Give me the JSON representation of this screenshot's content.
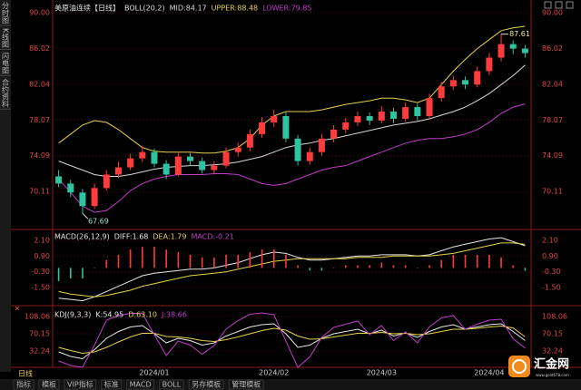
{
  "chart_data": [
    {
      "type": "candlestick",
      "title": "美原油连续【日线】",
      "indicator": "BOLL(20,2)",
      "categories": [
        null,
        null,
        null,
        null,
        null,
        null,
        null,
        null,
        "2024/01",
        null,
        null,
        null,
        null,
        null,
        null,
        null,
        null,
        null,
        "2024/02",
        null,
        null,
        null,
        null,
        null,
        null,
        null,
        null,
        "2024/03",
        null,
        null,
        null,
        null,
        null,
        null,
        null,
        null,
        "2024/04",
        null,
        null,
        null
      ],
      "open": [
        71.8,
        71.0,
        70.0,
        68.5,
        70.5,
        72.0,
        72.8,
        73.8,
        74.5,
        73.2,
        72.0,
        74.0,
        73.5,
        72.5,
        73.0,
        74.5,
        75.0,
        76.5,
        77.8,
        78.5,
        76.0,
        73.5,
        74.5,
        76.0,
        77.0,
        77.8,
        78.5,
        78.0,
        79.0,
        78.2,
        79.5,
        78.5,
        80.5,
        81.8,
        82.5,
        82.0,
        83.5,
        85.0,
        86.5,
        86.0
      ],
      "high": [
        72.5,
        71.4,
        70.4,
        71.0,
        72.5,
        73.4,
        74.3,
        75.2,
        74.9,
        73.6,
        74.5,
        74.4,
        73.9,
        73.5,
        75.0,
        75.6,
        77.0,
        78.4,
        79.2,
        78.9,
        76.4,
        75.0,
        76.5,
        77.5,
        78.3,
        79.0,
        78.9,
        79.6,
        79.4,
        80.0,
        79.9,
        81.0,
        82.3,
        83.0,
        82.9,
        84.0,
        85.5,
        87.61,
        86.9,
        86.4
      ],
      "low": [
        70.6,
        69.5,
        67.69,
        68.2,
        70.2,
        71.6,
        72.5,
        73.4,
        72.8,
        71.5,
        71.8,
        73.0,
        72.1,
        72.0,
        72.7,
        74.0,
        74.6,
        76.1,
        77.3,
        75.6,
        73.0,
        73.1,
        74.1,
        75.6,
        76.6,
        77.4,
        77.5,
        77.7,
        77.7,
        77.9,
        78.0,
        78.2,
        80.1,
        81.4,
        81.5,
        81.7,
        83.1,
        84.6,
        85.4,
        85.0
      ],
      "close": [
        71.0,
        70.0,
        68.5,
        70.5,
        72.0,
        72.8,
        73.8,
        74.5,
        73.2,
        72.0,
        74.0,
        73.5,
        72.5,
        73.0,
        74.5,
        75.0,
        76.5,
        77.8,
        78.5,
        76.0,
        73.5,
        74.5,
        76.0,
        77.0,
        77.8,
        78.5,
        78.0,
        79.0,
        78.2,
        79.5,
        78.5,
        80.5,
        81.8,
        82.5,
        82.0,
        83.5,
        85.0,
        86.5,
        86.0,
        85.5
      ],
      "up_color": "#ff3b3b",
      "down_color": "#2ec4a0",
      "series": [
        {
          "name": "MID:84.17",
          "color": "#d8d8d8",
          "values": [
            73.5,
            73.0,
            72.5,
            72.0,
            71.8,
            71.8,
            72.0,
            72.3,
            72.6,
            72.8,
            72.9,
            73.0,
            73.0,
            73.1,
            73.2,
            73.4,
            73.7,
            74.0,
            74.5,
            75.0,
            75.3,
            75.5,
            75.8,
            76.0,
            76.3,
            76.6,
            76.9,
            77.2,
            77.5,
            77.7,
            77.9,
            78.2,
            78.6,
            79.0,
            79.5,
            80.2,
            81.0,
            82.0,
            83.0,
            84.17
          ]
        },
        {
          "name": "UPPER:88.48",
          "color": "#e6d24a",
          "values": [
            75.5,
            76.5,
            77.5,
            78.0,
            77.8,
            77.0,
            76.0,
            75.0,
            74.6,
            74.5,
            74.5,
            74.5,
            74.4,
            74.4,
            74.6,
            75.0,
            76.0,
            77.5,
            78.5,
            79.0,
            79.0,
            79.0,
            79.2,
            79.5,
            79.8,
            80.0,
            80.2,
            80.5,
            80.5,
            80.3,
            80.0,
            80.5,
            82.0,
            83.5,
            84.8,
            86.0,
            87.0,
            88.0,
            88.3,
            88.48
          ]
        },
        {
          "name": "LOWER:79.85",
          "color": "#c03cc8",
          "values": [
            71.5,
            70.0,
            68.5,
            67.8,
            68.0,
            69.0,
            70.2,
            71.0,
            71.5,
            71.8,
            72.0,
            72.0,
            72.0,
            72.1,
            72.1,
            72.0,
            71.5,
            71.0,
            70.8,
            71.0,
            71.5,
            72.0,
            72.5,
            72.8,
            73.0,
            73.5,
            74.0,
            74.5,
            75.0,
            75.5,
            75.8,
            76.0,
            76.0,
            76.2,
            76.5,
            77.0,
            77.8,
            78.8,
            79.5,
            79.85
          ]
        }
      ],
      "ylim": [
        66.2,
        90.9
      ],
      "yticks": [
        {
          "value": 90,
          "label": "90.00"
        },
        86.02,
        82.04,
        78.07,
        74.09,
        70.11
      ],
      "grid": true,
      "tick_color": "#e04848"
    },
    {
      "type": "macd",
      "title": "MACD(26,12,9)",
      "up_color": "#ff3b3b",
      "down_color": "#2ec4a0",
      "series": [
        {
          "name": "DIFF:1.68",
          "color": "#e8e8e8",
          "values": [
            -2.3,
            -2.4,
            -2.5,
            -2.2,
            -1.8,
            -1.4,
            -1.0,
            -0.6,
            -0.4,
            -0.3,
            -0.2,
            -0.1,
            -0.1,
            0.0,
            0.2,
            0.4,
            0.7,
            1.0,
            1.2,
            1.1,
            0.8,
            0.6,
            0.6,
            0.7,
            0.8,
            0.9,
            0.9,
            1.0,
            1.0,
            1.0,
            0.9,
            1.0,
            1.3,
            1.6,
            1.8,
            2.0,
            2.2,
            2.3,
            2.0,
            1.68
          ]
        },
        {
          "name": "DEA:1.79",
          "color": "#e6d24a",
          "values": [
            -1.8,
            -2.0,
            -2.1,
            -2.2,
            -2.1,
            -1.9,
            -1.7,
            -1.4,
            -1.2,
            -1.0,
            -0.8,
            -0.6,
            -0.5,
            -0.4,
            -0.3,
            -0.1,
            0.1,
            0.3,
            0.5,
            0.6,
            0.7,
            0.7,
            0.7,
            0.7,
            0.7,
            0.8,
            0.8,
            0.8,
            0.9,
            0.9,
            0.9,
            0.9,
            1.0,
            1.1,
            1.3,
            1.5,
            1.7,
            1.9,
            1.9,
            1.79
          ]
        },
        {
          "name": "MACD:-0.21",
          "color": "#c03cc8",
          "style": "histogram",
          "values": [
            -1.0,
            -0.8,
            -0.8,
            0,
            0.6,
            1.0,
            1.4,
            1.6,
            1.6,
            1.4,
            1.2,
            1.0,
            0.8,
            0.8,
            1.0,
            1.0,
            1.2,
            1.4,
            1.4,
            1.0,
            0.2,
            -0.2,
            -0.2,
            0,
            0.2,
            0.2,
            0.2,
            0.4,
            0.2,
            0.2,
            0,
            0.2,
            0.6,
            1.0,
            1.0,
            1.0,
            1.0,
            0.8,
            0.2,
            -0.21
          ]
        }
      ],
      "ylim": [
        -2.6,
        2.65
      ],
      "yticks": [
        {
          "value": 2.1,
          "label": "2.10"
        },
        {
          "value": 0.9,
          "label": "0.90"
        },
        {
          "value": -0.3,
          "label": "-0.30"
        },
        {
          "value": -1.5,
          "label": "-1.50"
        }
      ],
      "grid": true,
      "tick_color": "#e04848"
    },
    {
      "type": "line",
      "title": "KDJ(9,3,3)",
      "series": [
        {
          "name": "K:54.95",
          "color": "#e8e8e8",
          "values": [
            30,
            20,
            15,
            35,
            60,
            75,
            85,
            88,
            70,
            50,
            60,
            55,
            45,
            50,
            65,
            75,
            85,
            90,
            92,
            70,
            40,
            45,
            60,
            70,
            75,
            80,
            70,
            78,
            65,
            72,
            62,
            75,
            85,
            90,
            80,
            85,
            90,
            92,
            75,
            54.95
          ]
        },
        {
          "name": "D:63.10",
          "color": "#e6d24a",
          "values": [
            40,
            33,
            27,
            30,
            40,
            52,
            63,
            71,
            71,
            64,
            63,
            60,
            55,
            53,
            57,
            63,
            70,
            77,
            82,
            78,
            65,
            58,
            59,
            63,
            67,
            71,
            71,
            73,
            70,
            71,
            68,
            70,
            75,
            80,
            80,
            82,
            85,
            87,
            83,
            63.1
          ]
        },
        {
          "name": "J:38.66",
          "color": "#c03cc8",
          "values": [
            10,
            0,
            -4,
            45,
            100,
            110,
            115,
            115,
            68,
            22,
            54,
            45,
            25,
            44,
            80,
            99,
            113,
            116,
            112,
            54,
            -4,
            19,
            62,
            84,
            91,
            98,
            68,
            88,
            55,
            74,
            50,
            85,
            105,
            110,
            80,
            91,
            100,
            102,
            59,
            38.66
          ]
        }
      ],
      "ylim": [
        -4,
        120
      ],
      "yticks": [
        108.06,
        70.15,
        32.24
      ],
      "grid": true,
      "tick_color": "#e04848"
    }
  ],
  "ui": {
    "side_tabs": [
      "分时图",
      "K线图",
      "闪电图",
      "合约资料"
    ],
    "period": "日线",
    "bottom_tabs": [
      "指标",
      "模板",
      "VIP指标",
      "标准",
      "MACD",
      "BOLL",
      "另存模板",
      "管理模板"
    ],
    "logo": "汇金网",
    "logo_url": "www.gold678.com"
  }
}
